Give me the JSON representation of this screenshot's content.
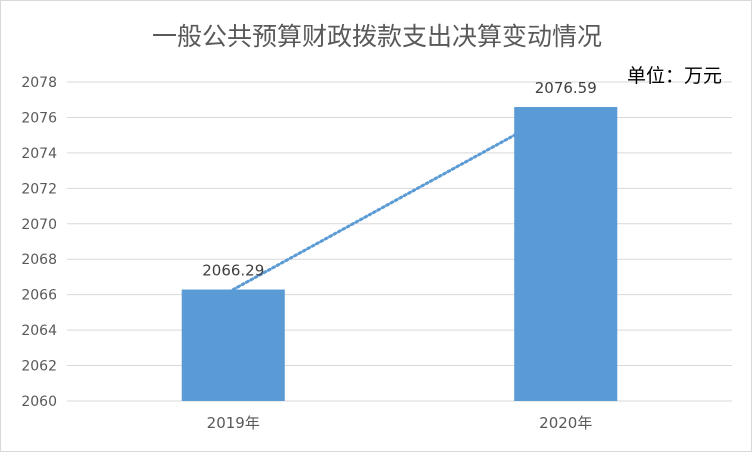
{
  "chart_data": {
    "type": "bar",
    "title": "一般公共预算财政拨款支出决算变动情况",
    "unit_label": "单位：万元",
    "categories": [
      "2019年",
      "2020年"
    ],
    "values": [
      2066.29,
      2076.59
    ],
    "data_labels": [
      "2066.29",
      "2076.59"
    ],
    "ylim": [
      2060,
      2078
    ],
    "yticks": [
      2060,
      2062,
      2064,
      2066,
      2068,
      2070,
      2072,
      2074,
      2076,
      2078
    ],
    "grid": true,
    "trendline": "linear dotted",
    "colors": {
      "bar": "#5b9bd5",
      "trend": "#5b9bd5",
      "grid": "#d9d9d9",
      "text": "#595959"
    }
  }
}
